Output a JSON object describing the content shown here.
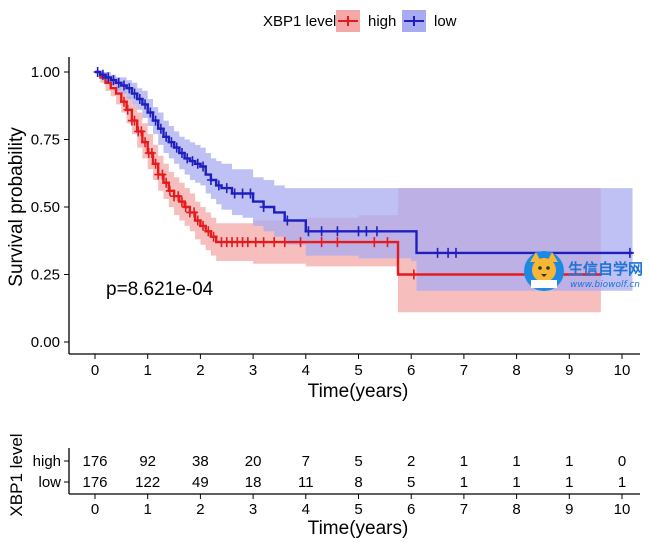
{
  "chart_data": [
    {
      "type": "line",
      "subtype": "kaplan-meier",
      "title": "",
      "xlabel": "Time(years)",
      "ylabel": "Survival probability",
      "xlim": [
        0,
        10.2
      ],
      "ylim": [
        0,
        1
      ],
      "xticks": [
        0,
        1,
        2,
        3,
        4,
        5,
        6,
        7,
        8,
        9,
        10
      ],
      "yticks": [
        0.0,
        0.25,
        0.5,
        0.75,
        1.0
      ],
      "ytick_labels": [
        "0.00",
        "0.25",
        "0.50",
        "0.75",
        "1.00"
      ],
      "legend": {
        "title": "XBP1 level",
        "position": "top",
        "entries": [
          "high",
          "low"
        ]
      },
      "annotation": "p=8.621e-04",
      "grid": false,
      "series": [
        {
          "name": "high",
          "color": "#E41A1C",
          "fill": "#F4A8A8",
          "x": [
            0,
            0.1,
            0.2,
            0.3,
            0.4,
            0.5,
            0.6,
            0.7,
            0.8,
            0.9,
            1.0,
            1.1,
            1.2,
            1.3,
            1.4,
            1.5,
            1.6,
            1.7,
            1.8,
            1.9,
            2.0,
            2.1,
            2.2,
            2.3,
            2.5,
            3.0,
            3.5,
            4.0,
            5.0,
            5.75,
            6.0,
            7.0,
            8.0,
            9.0,
            9.6
          ],
          "y": [
            1.0,
            0.98,
            0.96,
            0.94,
            0.92,
            0.89,
            0.86,
            0.82,
            0.78,
            0.74,
            0.7,
            0.66,
            0.62,
            0.59,
            0.56,
            0.54,
            0.52,
            0.5,
            0.48,
            0.45,
            0.43,
            0.41,
            0.39,
            0.37,
            0.37,
            0.37,
            0.37,
            0.37,
            0.37,
            0.25,
            0.25,
            0.25,
            0.25,
            0.25,
            0.25
          ],
          "lower": [
            1.0,
            0.96,
            0.93,
            0.91,
            0.88,
            0.85,
            0.81,
            0.77,
            0.72,
            0.68,
            0.64,
            0.6,
            0.56,
            0.53,
            0.5,
            0.47,
            0.45,
            0.43,
            0.41,
            0.38,
            0.36,
            0.34,
            0.32,
            0.3,
            0.3,
            0.29,
            0.29,
            0.28,
            0.28,
            0.11,
            0.11,
            0.11,
            0.11,
            0.11,
            0.11
          ],
          "upper": [
            1.0,
            1.0,
            0.99,
            0.98,
            0.96,
            0.93,
            0.91,
            0.88,
            0.85,
            0.81,
            0.77,
            0.73,
            0.69,
            0.66,
            0.63,
            0.61,
            0.59,
            0.57,
            0.55,
            0.52,
            0.5,
            0.48,
            0.46,
            0.44,
            0.44,
            0.45,
            0.45,
            0.46,
            0.47,
            0.57,
            0.57,
            0.57,
            0.57,
            0.57,
            0.57
          ],
          "censor_x": [
            0.55,
            0.62,
            0.7,
            0.75,
            0.82,
            0.88,
            0.95,
            1.02,
            1.08,
            1.15,
            1.2,
            1.28,
            1.35,
            1.42,
            1.5,
            1.58,
            1.65,
            1.72,
            1.8,
            1.88,
            1.95,
            2.05,
            2.15,
            2.25,
            2.4,
            2.5,
            2.6,
            2.7,
            2.8,
            2.9,
            3.05,
            3.2,
            3.4,
            3.6,
            3.9,
            4.3,
            4.6,
            5.3,
            5.55,
            6.05
          ]
        },
        {
          "name": "low",
          "color": "#1F1FBF",
          "fill": "#A9ABF0",
          "x": [
            0,
            0.1,
            0.2,
            0.3,
            0.4,
            0.5,
            0.6,
            0.7,
            0.8,
            0.9,
            1.0,
            1.1,
            1.2,
            1.3,
            1.4,
            1.5,
            1.6,
            1.7,
            1.8,
            1.9,
            2.0,
            2.1,
            2.2,
            2.3,
            2.4,
            2.6,
            2.8,
            3.0,
            3.2,
            3.4,
            3.6,
            4.0,
            5.0,
            5.5,
            6.0,
            6.1,
            7.0,
            8.0,
            9.0,
            10.2
          ],
          "y": [
            1.0,
            0.99,
            0.98,
            0.97,
            0.96,
            0.95,
            0.94,
            0.92,
            0.9,
            0.88,
            0.85,
            0.82,
            0.79,
            0.76,
            0.74,
            0.72,
            0.7,
            0.68,
            0.67,
            0.66,
            0.65,
            0.62,
            0.6,
            0.58,
            0.57,
            0.55,
            0.55,
            0.52,
            0.5,
            0.48,
            0.45,
            0.41,
            0.41,
            0.41,
            0.41,
            0.33,
            0.33,
            0.33,
            0.33,
            0.33
          ],
          "lower": [
            1.0,
            0.97,
            0.96,
            0.95,
            0.93,
            0.92,
            0.9,
            0.88,
            0.86,
            0.83,
            0.8,
            0.77,
            0.73,
            0.7,
            0.68,
            0.66,
            0.64,
            0.62,
            0.6,
            0.59,
            0.58,
            0.55,
            0.53,
            0.51,
            0.49,
            0.47,
            0.46,
            0.43,
            0.41,
            0.39,
            0.36,
            0.32,
            0.31,
            0.31,
            0.3,
            0.19,
            0.19,
            0.19,
            0.19,
            0.19
          ],
          "upper": [
            1.0,
            1.0,
            1.0,
            0.99,
            0.98,
            0.98,
            0.97,
            0.96,
            0.94,
            0.93,
            0.9,
            0.87,
            0.85,
            0.82,
            0.8,
            0.78,
            0.76,
            0.75,
            0.74,
            0.73,
            0.72,
            0.7,
            0.68,
            0.67,
            0.66,
            0.64,
            0.64,
            0.61,
            0.6,
            0.58,
            0.57,
            0.57,
            0.57,
            0.57,
            0.57,
            0.57,
            0.57,
            0.57,
            0.57,
            0.57
          ],
          "censor_x": [
            0.05,
            0.15,
            0.25,
            0.35,
            0.45,
            0.55,
            0.65,
            0.75,
            0.85,
            0.95,
            1.05,
            1.15,
            1.25,
            1.35,
            1.45,
            1.55,
            1.65,
            1.75,
            1.85,
            1.95,
            2.05,
            2.2,
            2.35,
            2.5,
            2.65,
            2.8,
            2.95,
            3.2,
            3.65,
            4.05,
            4.3,
            4.6,
            5.0,
            5.15,
            5.35,
            6.5,
            6.7,
            6.85,
            10.15
          ]
        }
      ]
    },
    {
      "type": "table",
      "title": "",
      "ylabel": "XBP1 level",
      "xlabel": "Time(years)",
      "columns": [
        0,
        1,
        2,
        3,
        4,
        5,
        6,
        7,
        8,
        9,
        10
      ],
      "rows": [
        {
          "name": "high",
          "color": "#E41A1C",
          "values": [
            176,
            92,
            38,
            20,
            7,
            5,
            2,
            1,
            1,
            1,
            0
          ]
        },
        {
          "name": "low",
          "color": "#1F1FBF",
          "values": [
            176,
            122,
            49,
            18,
            11,
            8,
            5,
            1,
            1,
            1,
            1
          ]
        }
      ]
    }
  ],
  "watermark": {
    "text_main": "生信自学网",
    "text_url": "www.biowolf.cn"
  }
}
